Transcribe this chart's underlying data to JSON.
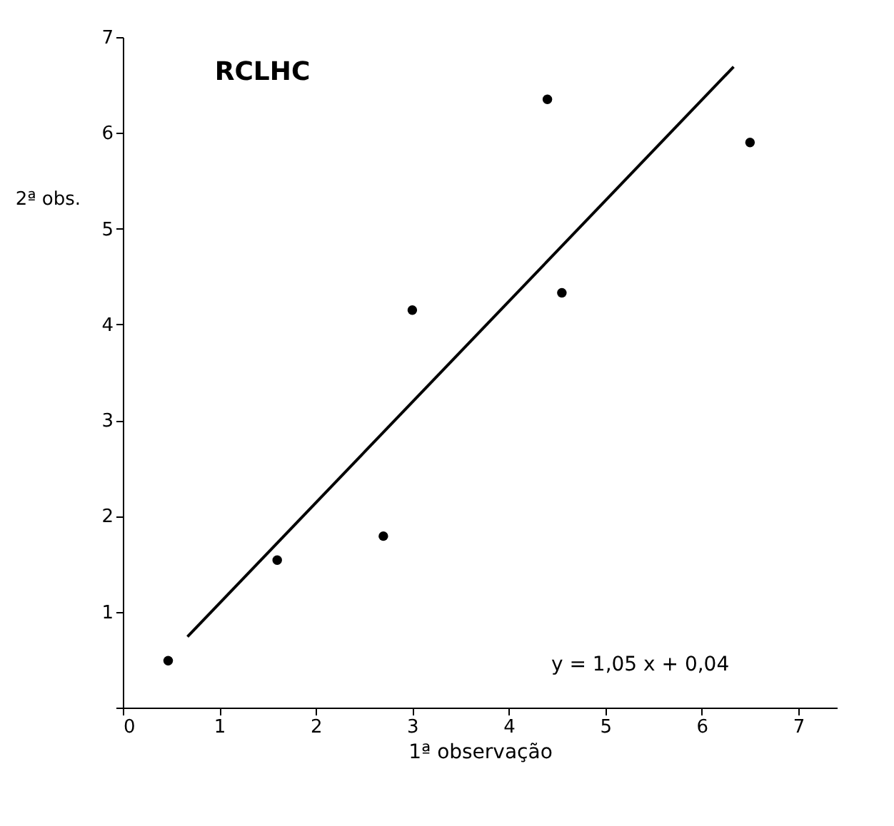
{
  "chart_data": {
    "type": "scatter",
    "title": "RCLHC",
    "xlabel": "1ª observação",
    "ylabel": "2ª obs.",
    "annotations": [
      "y = 1,05 x + 0,04"
    ],
    "xlim": [
      0,
      7.4
    ],
    "ylim": [
      0,
      7
    ],
    "xticks": [
      0,
      1,
      2,
      3,
      4,
      5,
      6,
      7
    ],
    "yticks": [
      {
        "value": 0,
        "label": null
      },
      1,
      2,
      3,
      4,
      5,
      6,
      7
    ],
    "grid": false,
    "series": [
      {
        "marker": "circle",
        "color": "#000000",
        "x": [
          0.47,
          1.6,
          2.7,
          3.0,
          4.4,
          4.55,
          6.5
        ],
        "values": [
          0.49,
          1.54,
          1.79,
          4.15,
          6.35,
          4.33,
          5.9
        ]
      },
      {
        "type": "line",
        "color": "#000000",
        "x": [
          0.67,
          6.33
        ],
        "values": [
          0.74,
          6.69
        ]
      }
    ]
  }
}
